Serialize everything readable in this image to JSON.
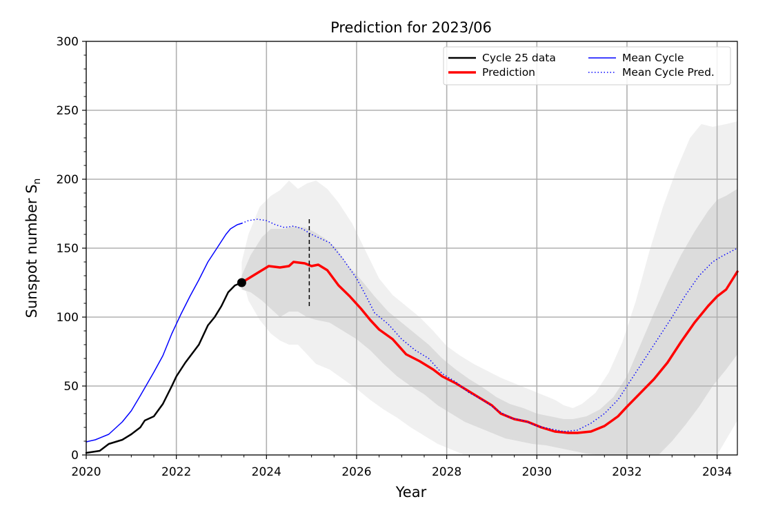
{
  "chart_data": {
    "type": "line",
    "title": "Prediction for 2023/06",
    "xlabel": "Year",
    "ylabel": "Sunspot number S",
    "ylabel_subscript": "n",
    "xlim": [
      2020,
      2034.45
    ],
    "ylim": [
      0,
      300
    ],
    "xticks": [
      2020,
      2022,
      2024,
      2026,
      2028,
      2030,
      2032,
      2034
    ],
    "yticks": [
      0,
      50,
      100,
      150,
      200,
      250,
      300
    ],
    "grid": true,
    "legend_position": "top-right",
    "legend": [
      {
        "label": "Cycle 25 data",
        "style": "black-solid-thick"
      },
      {
        "label": "Prediction",
        "style": "red-solid-thick"
      },
      {
        "label": "Mean Cycle",
        "style": "blue-solid"
      },
      {
        "label": "Mean Cycle Pred.",
        "style": "blue-dotted"
      }
    ],
    "marker_point": {
      "x": 2023.45,
      "y": 125
    },
    "vertical_marker": {
      "x": 2024.95,
      "y_range": [
        106,
        171
      ]
    },
    "series": [
      {
        "name": "Cycle 25 data",
        "color": "#000000",
        "style": "solid",
        "points": [
          [
            2020.0,
            1.5
          ],
          [
            2020.3,
            3
          ],
          [
            2020.5,
            8
          ],
          [
            2020.8,
            11
          ],
          [
            2021.0,
            15
          ],
          [
            2021.2,
            20
          ],
          [
            2021.3,
            25
          ],
          [
            2021.5,
            28
          ],
          [
            2021.7,
            37
          ],
          [
            2021.9,
            50
          ],
          [
            2022.0,
            57
          ],
          [
            2022.2,
            67
          ],
          [
            2022.5,
            80
          ],
          [
            2022.7,
            94
          ],
          [
            2022.85,
            100
          ],
          [
            2023.0,
            108
          ],
          [
            2023.15,
            118
          ],
          [
            2023.3,
            123
          ],
          [
            2023.45,
            125
          ]
        ]
      },
      {
        "name": "Prediction",
        "color": "#ff0000",
        "style": "solid",
        "points": [
          [
            2023.45,
            125
          ],
          [
            2023.7,
            130
          ],
          [
            2023.9,
            134
          ],
          [
            2024.05,
            137
          ],
          [
            2024.3,
            136
          ],
          [
            2024.5,
            137
          ],
          [
            2024.6,
            140
          ],
          [
            2024.85,
            139
          ],
          [
            2025.0,
            137
          ],
          [
            2025.15,
            138
          ],
          [
            2025.35,
            134
          ],
          [
            2025.6,
            123
          ],
          [
            2025.85,
            115
          ],
          [
            2026.1,
            106
          ],
          [
            2026.3,
            98
          ],
          [
            2026.5,
            91
          ],
          [
            2026.8,
            84
          ],
          [
            2027.1,
            73
          ],
          [
            2027.4,
            68
          ],
          [
            2027.7,
            62
          ],
          [
            2027.9,
            57
          ],
          [
            2028.2,
            52
          ],
          [
            2028.5,
            46
          ],
          [
            2028.75,
            41
          ],
          [
            2029.0,
            36
          ],
          [
            2029.2,
            30
          ],
          [
            2029.5,
            26
          ],
          [
            2029.8,
            24
          ],
          [
            2030.1,
            20
          ],
          [
            2030.4,
            17
          ],
          [
            2030.7,
            16
          ],
          [
            2030.9,
            16
          ],
          [
            2031.2,
            17
          ],
          [
            2031.5,
            21
          ],
          [
            2031.8,
            28
          ],
          [
            2032.0,
            35
          ],
          [
            2032.3,
            45
          ],
          [
            2032.6,
            55
          ],
          [
            2032.9,
            67
          ],
          [
            2033.2,
            82
          ],
          [
            2033.5,
            96
          ],
          [
            2033.8,
            108
          ],
          [
            2034.0,
            115
          ],
          [
            2034.2,
            120
          ],
          [
            2034.45,
            133
          ]
        ]
      },
      {
        "name": "Mean Cycle",
        "color": "#0000ff",
        "style": "solid",
        "points": [
          [
            2020.0,
            9.5
          ],
          [
            2020.2,
            11
          ],
          [
            2020.5,
            15
          ],
          [
            2020.8,
            24
          ],
          [
            2021.0,
            32
          ],
          [
            2021.2,
            43
          ],
          [
            2021.5,
            60
          ],
          [
            2021.7,
            72
          ],
          [
            2021.9,
            88
          ],
          [
            2022.1,
            102
          ],
          [
            2022.3,
            115
          ],
          [
            2022.5,
            127
          ],
          [
            2022.7,
            140
          ],
          [
            2022.9,
            150
          ],
          [
            2023.1,
            160
          ],
          [
            2023.2,
            164
          ],
          [
            2023.35,
            167
          ],
          [
            2023.45,
            168
          ]
        ]
      },
      {
        "name": "Mean Cycle Pred.",
        "color": "#0000ff",
        "style": "dotted",
        "points": [
          [
            2023.45,
            168
          ],
          [
            2023.6,
            170
          ],
          [
            2023.8,
            171
          ],
          [
            2024.0,
            170
          ],
          [
            2024.2,
            167
          ],
          [
            2024.4,
            165
          ],
          [
            2024.6,
            166
          ],
          [
            2024.8,
            164
          ],
          [
            2025.0,
            160
          ],
          [
            2025.2,
            157
          ],
          [
            2025.4,
            154
          ],
          [
            2025.7,
            142
          ],
          [
            2026.0,
            128
          ],
          [
            2026.2,
            116
          ],
          [
            2026.4,
            103
          ],
          [
            2026.7,
            95
          ],
          [
            2027.0,
            84
          ],
          [
            2027.3,
            76
          ],
          [
            2027.6,
            70
          ],
          [
            2027.9,
            59
          ],
          [
            2028.2,
            53
          ],
          [
            2028.5,
            45
          ],
          [
            2028.8,
            40
          ],
          [
            2029.1,
            33
          ],
          [
            2029.4,
            27
          ],
          [
            2029.7,
            25
          ],
          [
            2030.0,
            21
          ],
          [
            2030.3,
            19
          ],
          [
            2030.6,
            17
          ],
          [
            2030.9,
            18
          ],
          [
            2031.2,
            23
          ],
          [
            2031.5,
            30
          ],
          [
            2031.8,
            40
          ],
          [
            2032.1,
            55
          ],
          [
            2032.4,
            70
          ],
          [
            2032.7,
            85
          ],
          [
            2033.0,
            100
          ],
          [
            2033.3,
            116
          ],
          [
            2033.6,
            130
          ],
          [
            2033.9,
            140
          ],
          [
            2034.1,
            144
          ],
          [
            2034.45,
            150
          ]
        ]
      }
    ],
    "bands": [
      {
        "name": "outer-band",
        "color": "#f0f0f0",
        "upper": [
          [
            2023.45,
            140
          ],
          [
            2023.6,
            160
          ],
          [
            2023.85,
            180
          ],
          [
            2024.1,
            188
          ],
          [
            2024.3,
            192
          ],
          [
            2024.5,
            199
          ],
          [
            2024.7,
            193
          ],
          [
            2024.9,
            197
          ],
          [
            2025.1,
            199
          ],
          [
            2025.35,
            193
          ],
          [
            2025.6,
            183
          ],
          [
            2025.9,
            168
          ],
          [
            2026.2,
            148
          ],
          [
            2026.5,
            128
          ],
          [
            2026.8,
            116
          ],
          [
            2027.1,
            108
          ],
          [
            2027.4,
            100
          ],
          [
            2027.7,
            90
          ],
          [
            2028.0,
            79
          ],
          [
            2028.3,
            72
          ],
          [
            2028.6,
            66
          ],
          [
            2028.9,
            61
          ],
          [
            2029.2,
            56
          ],
          [
            2029.5,
            52
          ],
          [
            2029.8,
            48
          ],
          [
            2030.1,
            44
          ],
          [
            2030.4,
            40
          ],
          [
            2030.6,
            36
          ],
          [
            2030.8,
            34
          ],
          [
            2031.0,
            37
          ],
          [
            2031.3,
            45
          ],
          [
            2031.6,
            60
          ],
          [
            2031.9,
            82
          ],
          [
            2032.2,
            112
          ],
          [
            2032.5,
            148
          ],
          [
            2032.8,
            180
          ],
          [
            2033.1,
            207
          ],
          [
            2033.4,
            230
          ],
          [
            2033.65,
            240
          ],
          [
            2033.9,
            238
          ],
          [
            2034.2,
            240
          ],
          [
            2034.45,
            242
          ]
        ],
        "lower": [
          [
            2023.45,
            130
          ],
          [
            2023.6,
            112
          ],
          [
            2023.85,
            98
          ],
          [
            2024.1,
            88
          ],
          [
            2024.3,
            83
          ],
          [
            2024.5,
            80
          ],
          [
            2024.7,
            80
          ],
          [
            2024.9,
            73
          ],
          [
            2025.1,
            66
          ],
          [
            2025.4,
            62
          ],
          [
            2025.7,
            55
          ],
          [
            2026.0,
            48
          ],
          [
            2026.3,
            40
          ],
          [
            2026.6,
            33
          ],
          [
            2026.9,
            27
          ],
          [
            2027.2,
            20
          ],
          [
            2027.5,
            14
          ],
          [
            2027.8,
            8
          ],
          [
            2028.1,
            4
          ],
          [
            2028.4,
            0
          ],
          [
            2034.0,
            0
          ],
          [
            2034.45,
            25
          ]
        ]
      },
      {
        "name": "inner-band",
        "color": "#dcdcdc",
        "upper": [
          [
            2023.45,
            130
          ],
          [
            2023.65,
            145
          ],
          [
            2023.9,
            158
          ],
          [
            2024.1,
            164
          ],
          [
            2024.4,
            164
          ],
          [
            2024.6,
            166
          ],
          [
            2024.85,
            165
          ],
          [
            2025.05,
            162
          ],
          [
            2025.3,
            157
          ],
          [
            2025.55,
            150
          ],
          [
            2025.8,
            138
          ],
          [
            2026.1,
            127
          ],
          [
            2026.4,
            115
          ],
          [
            2026.7,
            104
          ],
          [
            2027.0,
            96
          ],
          [
            2027.3,
            88
          ],
          [
            2027.6,
            80
          ],
          [
            2027.9,
            70
          ],
          [
            2028.2,
            62
          ],
          [
            2028.5,
            55
          ],
          [
            2028.8,
            49
          ],
          [
            2029.1,
            42
          ],
          [
            2029.4,
            37
          ],
          [
            2029.7,
            34
          ],
          [
            2030.0,
            30
          ],
          [
            2030.3,
            28
          ],
          [
            2030.6,
            26
          ],
          [
            2030.8,
            26
          ],
          [
            2031.1,
            28
          ],
          [
            2031.4,
            33
          ],
          [
            2031.7,
            42
          ],
          [
            2032.0,
            57
          ],
          [
            2032.3,
            80
          ],
          [
            2032.6,
            103
          ],
          [
            2032.9,
            125
          ],
          [
            2033.2,
            145
          ],
          [
            2033.5,
            162
          ],
          [
            2033.8,
            177
          ],
          [
            2034.0,
            185
          ],
          [
            2034.2,
            188
          ],
          [
            2034.45,
            193
          ]
        ],
        "lower": [
          [
            2023.45,
            120
          ],
          [
            2023.65,
            118
          ],
          [
            2023.9,
            112
          ],
          [
            2024.1,
            106
          ],
          [
            2024.3,
            100
          ],
          [
            2024.5,
            104
          ],
          [
            2024.7,
            104
          ],
          [
            2024.9,
            100
          ],
          [
            2025.1,
            98
          ],
          [
            2025.4,
            96
          ],
          [
            2025.7,
            90
          ],
          [
            2026.0,
            84
          ],
          [
            2026.3,
            76
          ],
          [
            2026.6,
            66
          ],
          [
            2026.9,
            57
          ],
          [
            2027.2,
            50
          ],
          [
            2027.5,
            44
          ],
          [
            2027.8,
            36
          ],
          [
            2028.1,
            30
          ],
          [
            2028.4,
            24
          ],
          [
            2028.7,
            20
          ],
          [
            2029.0,
            16
          ],
          [
            2029.3,
            12
          ],
          [
            2029.6,
            10
          ],
          [
            2029.9,
            8
          ],
          [
            2030.2,
            7
          ],
          [
            2030.5,
            5
          ],
          [
            2030.8,
            3
          ],
          [
            2031.1,
            1
          ],
          [
            2031.4,
            0
          ],
          [
            2032.7,
            0
          ],
          [
            2033.0,
            10
          ],
          [
            2033.3,
            22
          ],
          [
            2033.6,
            35
          ],
          [
            2033.9,
            50
          ],
          [
            2034.2,
            62
          ],
          [
            2034.45,
            73
          ]
        ]
      }
    ]
  }
}
